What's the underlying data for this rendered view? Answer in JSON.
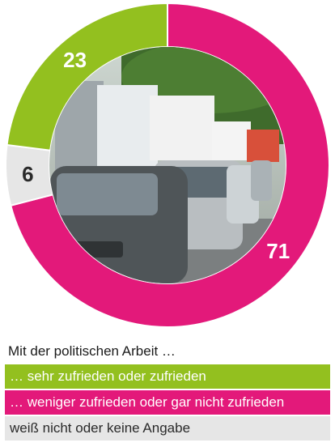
{
  "chart_data": {
    "type": "pie",
    "style": "donut",
    "categories": [
      "… sehr zufrieden oder zufrieden",
      "… weniger zufrieden oder gar nicht zufrieden",
      "weiß nicht oder keine Angabe"
    ],
    "values": [
      23,
      71,
      6
    ],
    "value_labels": [
      "23",
      "71",
      "6"
    ],
    "colors": [
      "#93c01f",
      "#e3197a",
      "#e6e6e6"
    ],
    "label_colors": [
      "#ffffff",
      "#ffffff",
      "#2a2a2a"
    ],
    "legend_title": "Mit der politischen Arbeit …",
    "legend_placement": "bottom"
  }
}
